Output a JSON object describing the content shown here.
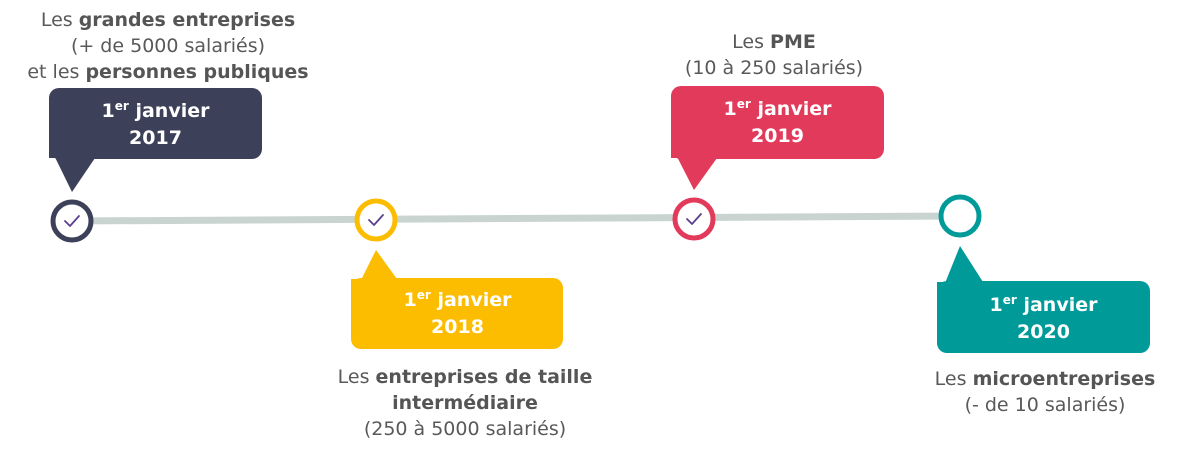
{
  "colors": {
    "line": "#c9d4d1",
    "check": "#5b3f8c",
    "text": "#595959"
  },
  "milestones": [
    {
      "color": "#3d4059",
      "completed": true,
      "icon": "check-icon",
      "day": "1",
      "sup": "er",
      "month": "janvier",
      "year": "2017",
      "desc": [
        {
          "pre": "Les ",
          "bold": "grandes entreprises"
        },
        {
          "pre": "(+ de 5000 salariés)",
          "bold": ""
        },
        {
          "pre": "et les ",
          "bold": "personnes publiques"
        }
      ]
    },
    {
      "color": "#fcbd00",
      "completed": true,
      "icon": "check-icon",
      "day": "1",
      "sup": "er",
      "month": "janvier",
      "year": "2018",
      "desc": [
        {
          "pre": "Les ",
          "bold": "entreprises de taille"
        },
        {
          "pre": "",
          "bold": "intermédiaire"
        },
        {
          "pre": "(250 à 5000 salariés)",
          "bold": ""
        }
      ]
    },
    {
      "color": "#e23a5b",
      "completed": true,
      "icon": "check-icon",
      "day": "1",
      "sup": "er",
      "month": "janvier",
      "year": "2019",
      "desc": [
        {
          "pre": "Les ",
          "bold": "PME"
        },
        {
          "pre": "(10 à 250 salariés)",
          "bold": ""
        }
      ]
    },
    {
      "color": "#009a99",
      "completed": false,
      "icon": "empty-circle",
      "day": "1",
      "sup": "er",
      "month": "janvier",
      "year": "2020",
      "desc": [
        {
          "pre": "Les ",
          "bold": "microentreprises"
        },
        {
          "pre": "(- de 10 salariés)",
          "bold": ""
        }
      ]
    }
  ]
}
